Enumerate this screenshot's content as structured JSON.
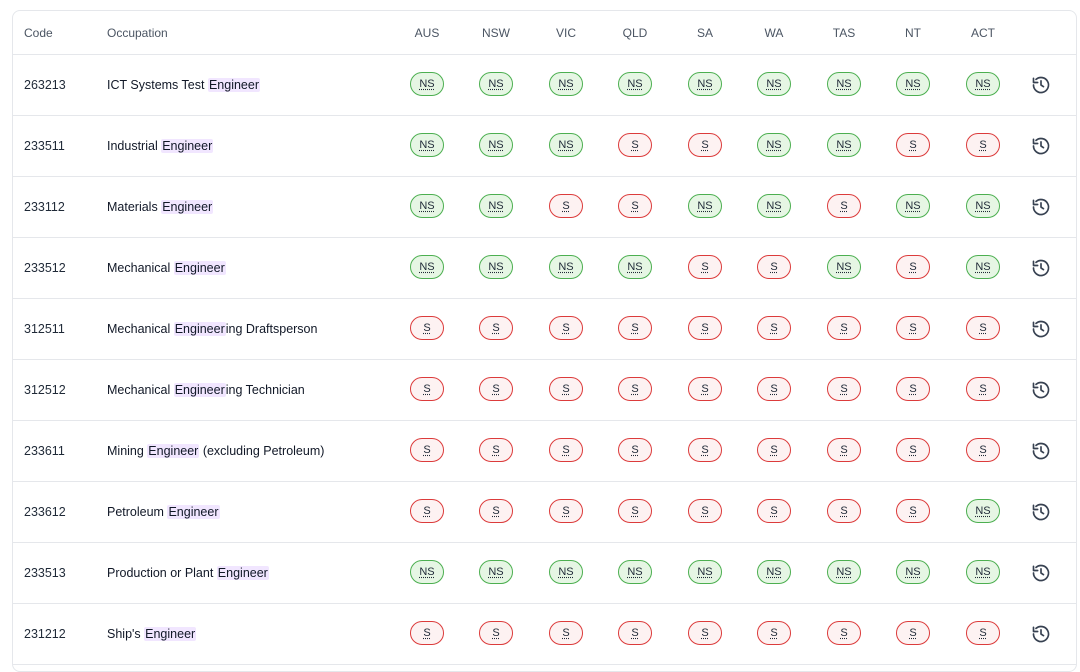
{
  "table": {
    "headers": {
      "code": "Code",
      "occupation": "Occupation",
      "states": [
        "AUS",
        "NSW",
        "VIC",
        "QLD",
        "SA",
        "WA",
        "TAS",
        "NT",
        "ACT"
      ]
    },
    "rows": [
      {
        "code": "263213",
        "pre": "ICT Systems Test ",
        "hl": "Engineer",
        "post": "",
        "statuses": [
          "NS",
          "NS",
          "NS",
          "NS",
          "NS",
          "NS",
          "NS",
          "NS",
          "NS"
        ]
      },
      {
        "code": "233511",
        "pre": "Industrial ",
        "hl": "Engineer",
        "post": "",
        "statuses": [
          "NS",
          "NS",
          "NS",
          "S",
          "S",
          "NS",
          "NS",
          "S",
          "S"
        ]
      },
      {
        "code": "233112",
        "pre": "Materials ",
        "hl": "Engineer",
        "post": "",
        "statuses": [
          "NS",
          "NS",
          "S",
          "S",
          "NS",
          "NS",
          "S",
          "NS",
          "NS"
        ]
      },
      {
        "code": "233512",
        "pre": "Mechanical ",
        "hl": "Engineer",
        "post": "",
        "statuses": [
          "NS",
          "NS",
          "NS",
          "NS",
          "S",
          "S",
          "NS",
          "S",
          "NS"
        ]
      },
      {
        "code": "312511",
        "pre": "Mechanical ",
        "hl": "Engineer",
        "post": "ing Draftsperson",
        "statuses": [
          "S",
          "S",
          "S",
          "S",
          "S",
          "S",
          "S",
          "S",
          "S"
        ]
      },
      {
        "code": "312512",
        "pre": "Mechanical ",
        "hl": "Engineer",
        "post": "ing Technician",
        "statuses": [
          "S",
          "S",
          "S",
          "S",
          "S",
          "S",
          "S",
          "S",
          "S"
        ]
      },
      {
        "code": "233611",
        "pre": "Mining ",
        "hl": "Engineer",
        "post": " (excluding Petroleum)",
        "statuses": [
          "S",
          "S",
          "S",
          "S",
          "S",
          "S",
          "S",
          "S",
          "S"
        ]
      },
      {
        "code": "233612",
        "pre": "Petroleum ",
        "hl": "Engineer",
        "post": "",
        "statuses": [
          "S",
          "S",
          "S",
          "S",
          "S",
          "S",
          "S",
          "S",
          "NS"
        ]
      },
      {
        "code": "233513",
        "pre": "Production or Plant ",
        "hl": "Engineer",
        "post": "",
        "statuses": [
          "NS",
          "NS",
          "NS",
          "NS",
          "NS",
          "NS",
          "NS",
          "NS",
          "NS"
        ]
      },
      {
        "code": "231212",
        "pre": "Ship's ",
        "hl": "Engineer",
        "post": "",
        "statuses": [
          "S",
          "S",
          "S",
          "S",
          "S",
          "S",
          "S",
          "S",
          "S"
        ]
      }
    ],
    "history_icon": "history-icon",
    "colors": {
      "ns_bg": "#e6f6e4",
      "ns_border": "#4caf50",
      "s_bg": "#fdf2f2",
      "s_border": "#dc3b3b",
      "highlight": "#f1e6ff"
    }
  }
}
